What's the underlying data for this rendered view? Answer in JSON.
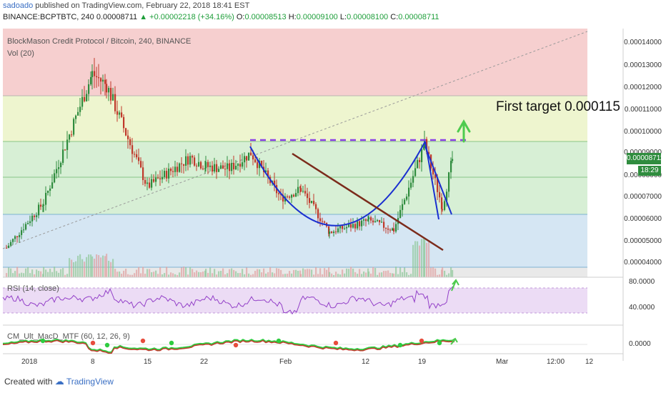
{
  "header": {
    "author": "sadoado",
    "published_text": " published on TradingView.com, February 22, 2018 18:41 EST",
    "symbol_line": "BINANCE:BCPTBTC, 240",
    "last_price": "0.00008711",
    "change": "▲ +0.00002218 (+34.16%)",
    "o_label": "O:",
    "o_value": "0.00008513",
    "h_label": "H:",
    "h_value": "0.00009100",
    "l_label": "L:",
    "l_value": "0.00008100",
    "c_label": "C:",
    "c_value": "0.00008711"
  },
  "main_legend": {
    "title": "BlockMason Credit Protocol / Bitcoin, 240, BINANCE",
    "volume": "Vol (20)"
  },
  "annotation": "First target 0.000115",
  "price_axis": {
    "ticks": [
      "0.00014000",
      "0.00013000",
      "0.00012000",
      "0.00011000",
      "0.00010000",
      "0.00009000",
      "0.00008000",
      "0.00007000",
      "0.00006000",
      "0.00005000",
      "0.00004000"
    ],
    "current_price": "0.00008711",
    "countdown": "18:29"
  },
  "rsi": {
    "label": "RSI (14, close)",
    "ticks": [
      "80.0000",
      "40.0000"
    ]
  },
  "macd": {
    "label": "CM_Ult_MacD_MTF (60, 12, 26, 9)",
    "ticks": [
      "0.0000"
    ]
  },
  "time_axis": [
    "2018",
    "8",
    "15",
    "22",
    "Feb",
    "12",
    "19",
    "Mar",
    "12:00",
    "12"
  ],
  "footer": {
    "created_with": "Created with",
    "brand": "TradingView"
  },
  "colors": {
    "up": "#2f8c3e",
    "down": "#c0392b",
    "fib_red": "#f6cfcf",
    "fib_yellow": "#eef5cf",
    "fib_green": "#d7efd5",
    "fib_blue": "#d5e6f3",
    "pattern_line": "#1a2fd0",
    "trend_line": "#7b2b1b",
    "dash_line": "#8a3fe6",
    "arrow": "#4ecb4e"
  },
  "chart_data": {
    "type": "candlestick",
    "symbol": "BCPTBTC",
    "timeframe": "240",
    "ylim": [
      3.5e-05,
      0.000145
    ],
    "x": [
      "Jan 1",
      "Jan 4",
      "Jan 8",
      "Jan 11",
      "Jan 15",
      "Jan 18",
      "Jan 22",
      "Jan 25",
      "Jan 28",
      "Feb 1",
      "Feb 4",
      "Feb 8",
      "Feb 12",
      "Feb 15",
      "Feb 19",
      "Feb 21",
      "Feb 22"
    ],
    "close": [
      4.8e-05,
      6.8e-05,
      0.000125,
      0.00012,
      7.5e-05,
      8.8e-05,
      8.4e-05,
      8.3e-05,
      9e-05,
      7e-05,
      7.4e-05,
      5.5e-05,
      6e-05,
      5.6e-05,
      9.4e-05,
      6.6e-05,
      8.71e-05
    ],
    "fib_levels": [
      3.75e-05,
      6.1e-05,
      7.8e-05,
      9.5e-05,
      0.000116
    ],
    "resistance_level": 9.5e-05,
    "target": 0.000115,
    "rsi_range": [
      40,
      80
    ]
  }
}
